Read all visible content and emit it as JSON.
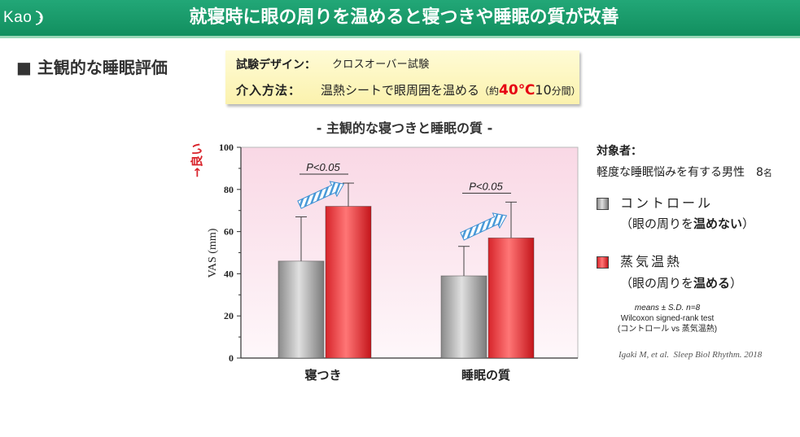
{
  "colors": {
    "header_green": "#1a9a6a",
    "control_gray": "#a3a3a3",
    "heat_red": "#e83a3f",
    "temperature_red": "#e60012",
    "direction_red": "#d9232b",
    "arrow_blue": "#3c8fd3",
    "design_box_yellow": "#fdf8c4"
  },
  "header": {
    "logo_text": "Kao",
    "title": "就寝時に眼の周りを温めると寝つきや睡眠の質が改善"
  },
  "section": {
    "heading": "■ 主観的な睡眠評価"
  },
  "design_box": {
    "design_label": "試験デザイン：",
    "design_value": "クロスオーバー試験",
    "method_label": "介入方法：",
    "method_value": "温熱シートで眼周囲を温める",
    "method_paren_open": "（約",
    "method_temp": "40℃",
    "method_duration": "10",
    "method_unit": "分間）"
  },
  "chart_data": {
    "type": "bar",
    "title": "- 主観的な寝つきと睡眠の質 -",
    "xlabel": "",
    "ylabel": "VAS (mm)",
    "ylabel_direction": "→良い",
    "categories": [
      "寝つき",
      "睡眠の質"
    ],
    "ylim": [
      0,
      100
    ],
    "yticks": [
      0,
      20,
      40,
      60,
      80,
      100
    ],
    "series": [
      {
        "name": "コントロール",
        "values": [
          46,
          39
        ],
        "sd": [
          21,
          14
        ],
        "color": "#a3a3a3"
      },
      {
        "name": "蒸気温熱",
        "values": [
          72,
          57
        ],
        "sd": [
          11,
          17
        ],
        "color": "#e83a3f"
      }
    ],
    "significance": [
      "P<0.05",
      "P<0.05"
    ],
    "grid": false,
    "legend": "right"
  },
  "legend": {
    "subjects_label": "対象者：",
    "subjects_text": "軽度な睡眠悩みを有する男性　8",
    "subjects_unit": "名",
    "items": [
      {
        "sub_prefix": "（眼の周りを",
        "sub_bold": "温めない",
        "sub_suffix": "）"
      },
      {
        "sub_prefix": "（眼の周りを",
        "sub_bold": "温める",
        "sub_suffix": "）"
      }
    ]
  },
  "notes": {
    "stats": "means ± S.D. n=8",
    "test": "Wilcoxon signed-rank test",
    "comparison": "(コントロール vs 蒸気温熱)"
  },
  "citation": {
    "authors": "Igaki M, et al.",
    "journal": "Sleep Biol Rhythm. 2018"
  }
}
